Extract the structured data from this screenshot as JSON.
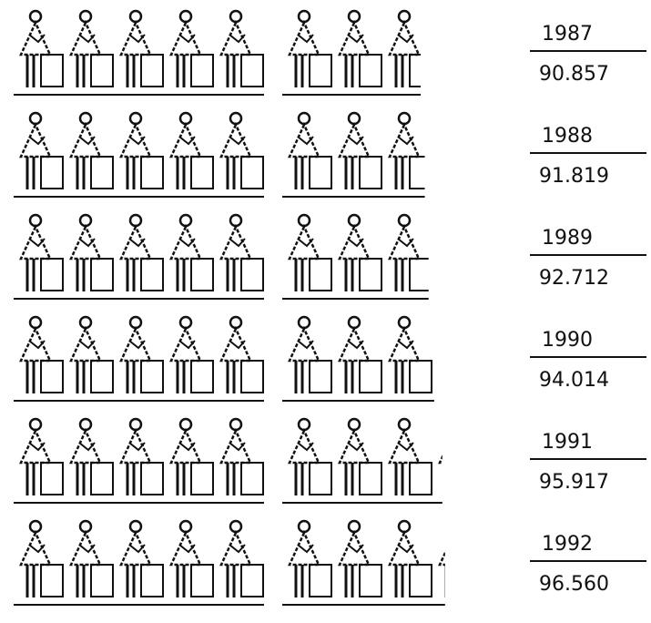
{
  "chart_data": {
    "type": "pictogram",
    "categories": [
      "1987",
      "1988",
      "1989",
      "1990",
      "1991",
      "1992"
    ],
    "values": [
      90857,
      91819,
      92712,
      94014,
      95917,
      96560
    ],
    "value_labels": [
      "90.857",
      "91.819",
      "92.712",
      "94.014",
      "95.917",
      "96.560"
    ],
    "color": "#111111"
  }
}
